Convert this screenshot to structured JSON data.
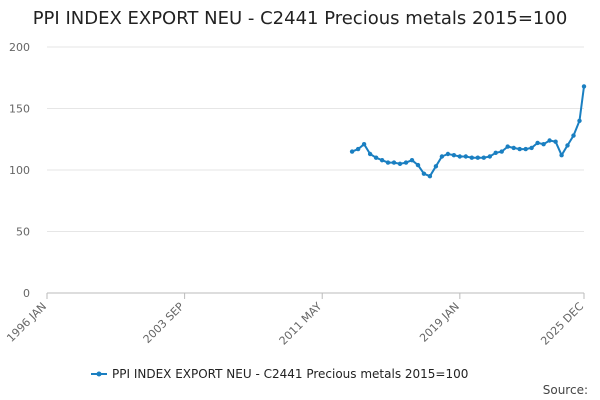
{
  "chart_data": {
    "type": "line",
    "title": "PPI INDEX EXPORT NEU - C2441 Precious metals 2015=100",
    "xlabel": "",
    "ylabel": "",
    "ylim": [
      0,
      200
    ],
    "y_ticks": [
      0,
      50,
      100,
      150,
      200
    ],
    "x_ticks": [
      "1996 JAN",
      "2003 SEP",
      "2011 MAY",
      "2019 JAN",
      "2025 DEC"
    ],
    "grid": "horizontal",
    "legend_position": "bottom",
    "series": [
      {
        "name": "PPI INDEX EXPORT NEU - C2441 Precious metals 2015=100",
        "color": "#1a7fc1",
        "x": [
          "2013 JAN",
          "2013 MAY",
          "2013 SEP",
          "2014 JAN",
          "2014 MAY",
          "2014 SEP",
          "2015 JAN",
          "2015 MAY",
          "2015 SEP",
          "2016 JAN",
          "2016 MAY",
          "2016 SEP",
          "2017 JAN",
          "2017 MAY",
          "2017 SEP",
          "2018 JAN",
          "2018 MAY",
          "2018 SEP",
          "2019 JAN",
          "2019 MAY",
          "2019 SEP",
          "2020 JAN",
          "2020 MAY",
          "2020 SEP",
          "2021 JAN",
          "2021 MAY",
          "2021 SEP",
          "2022 JAN",
          "2022 MAY",
          "2022 SEP",
          "2023 JAN",
          "2023 MAY",
          "2023 SEP",
          "2024 JAN",
          "2024 MAY",
          "2024 SEP",
          "2025 JAN",
          "2025 MAY",
          "2025 SEP",
          "2025 DEC"
        ],
        "values": [
          115,
          117,
          121,
          113,
          110,
          108,
          106,
          106,
          105,
          106,
          108,
          104,
          97,
          95,
          103,
          111,
          113,
          112,
          111,
          111,
          110,
          110,
          110,
          111,
          114,
          115,
          119,
          118,
          117,
          117,
          118,
          122,
          121,
          124,
          123,
          112,
          120,
          128,
          140,
          168
        ]
      }
    ]
  },
  "source_label": "Source:"
}
